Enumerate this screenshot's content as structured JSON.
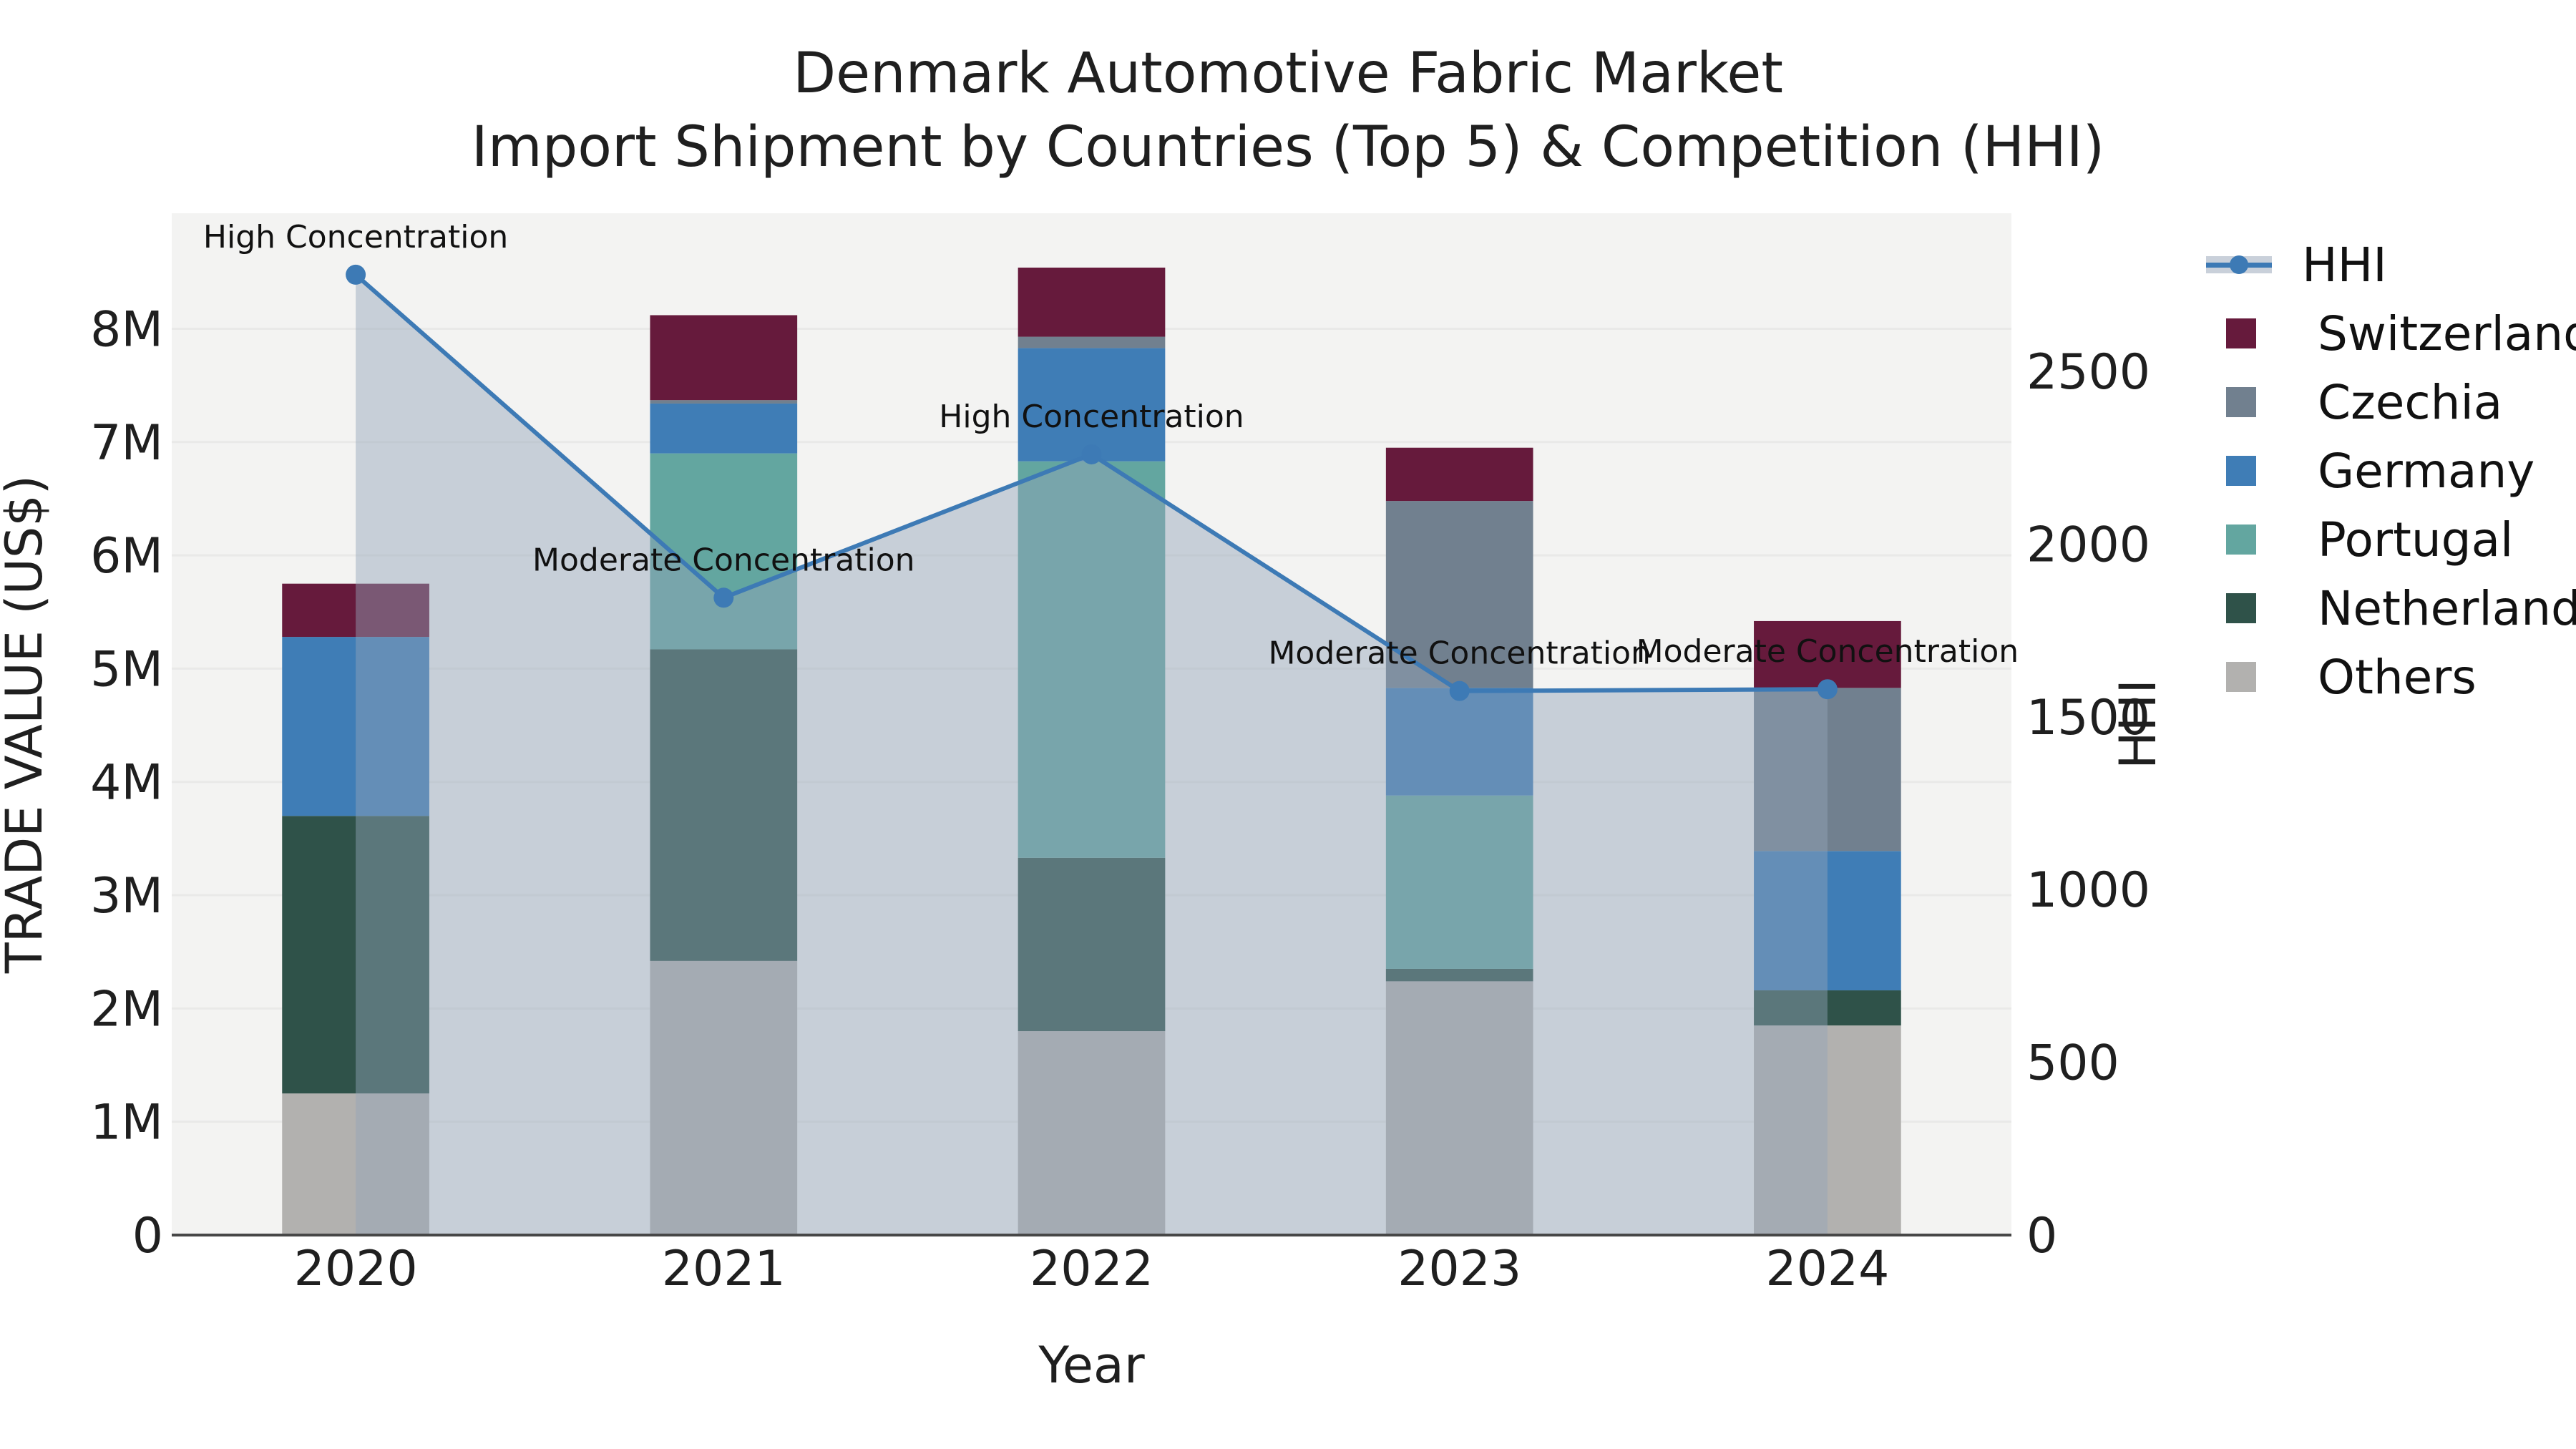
{
  "title": {
    "line1": "Denmark Automotive Fabric Market",
    "line2": "Import Shipment by Countries (Top 5) & Competition (HHI)"
  },
  "chart_data": {
    "type": "combo-stacked-bar-line",
    "categories": [
      "2020",
      "2021",
      "2022",
      "2023",
      "2024"
    ],
    "xlabel": "Year",
    "y_left": {
      "label": "TRADE VALUE (US$)",
      "unit": "million US$",
      "tick_values": [
        0,
        1,
        2,
        3,
        4,
        5,
        6,
        7,
        8
      ],
      "tick_labels": [
        "0",
        "1M",
        "2M",
        "3M",
        "4M",
        "5M",
        "6M",
        "7M",
        "8M"
      ],
      "range": [
        0,
        9.02
      ]
    },
    "y_right": {
      "label": "HHI",
      "tick_values": [
        0,
        500,
        1000,
        1500,
        2000,
        2500
      ],
      "tick_labels": [
        "0",
        "500",
        "1000",
        "1500",
        "2000",
        "2500"
      ],
      "range": [
        0,
        2958
      ]
    },
    "series": [
      {
        "name": "Others",
        "color": "#b2b1af",
        "values": [
          1.25,
          2.42,
          1.8,
          2.24,
          1.85
        ]
      },
      {
        "name": "Netherlands",
        "color": "#2f5249",
        "values": [
          2.45,
          2.75,
          1.53,
          0.11,
          0.31
        ]
      },
      {
        "name": "Portugal",
        "color": "#63a6a0",
        "values": [
          0,
          1.73,
          3.5,
          1.53,
          0
        ]
      },
      {
        "name": "Germany",
        "color": "#3f7db6",
        "values": [
          1.58,
          0.44,
          1.0,
          0.95,
          1.23
        ]
      },
      {
        "name": "Czechia",
        "color": "#71808f",
        "values": [
          0,
          0.03,
          0.1,
          1.65,
          1.44
        ]
      },
      {
        "name": "Switzerland",
        "color": "#661a3c",
        "values": [
          0.47,
          0.75,
          0.61,
          0.47,
          0.59
        ]
      }
    ],
    "line": {
      "name": "HHI",
      "color": "#3d7ab5",
      "fill_color": "#93a3b8",
      "fill_opacity": 0.45,
      "values": [
        2780,
        1845,
        2260,
        1575,
        1580
      ]
    },
    "annotations": [
      "High Concentration",
      "Moderate Concentration",
      "High Concentration",
      "Moderate Concentration",
      "Moderate Concentration"
    ],
    "legend": [
      {
        "label": "HHI",
        "type": "line",
        "color": "#3d7ab5"
      },
      {
        "label": "Switzerland",
        "type": "patch",
        "color": "#661a3c"
      },
      {
        "label": "Czechia",
        "type": "patch",
        "color": "#71808f"
      },
      {
        "label": "Germany",
        "type": "patch",
        "color": "#3f7db6"
      },
      {
        "label": "Portugal",
        "type": "patch",
        "color": "#63a6a0"
      },
      {
        "label": "Netherlands",
        "type": "patch",
        "color": "#2f5249"
      },
      {
        "label": "Others",
        "type": "patch",
        "color": "#b2b1af"
      }
    ],
    "style": {
      "plot_bg": "#f3f3f2",
      "grid_color": "#e9e9e8",
      "spine_color": "#474747",
      "tick_color": "#1f1f1f",
      "annotation_color": "#111111"
    }
  }
}
